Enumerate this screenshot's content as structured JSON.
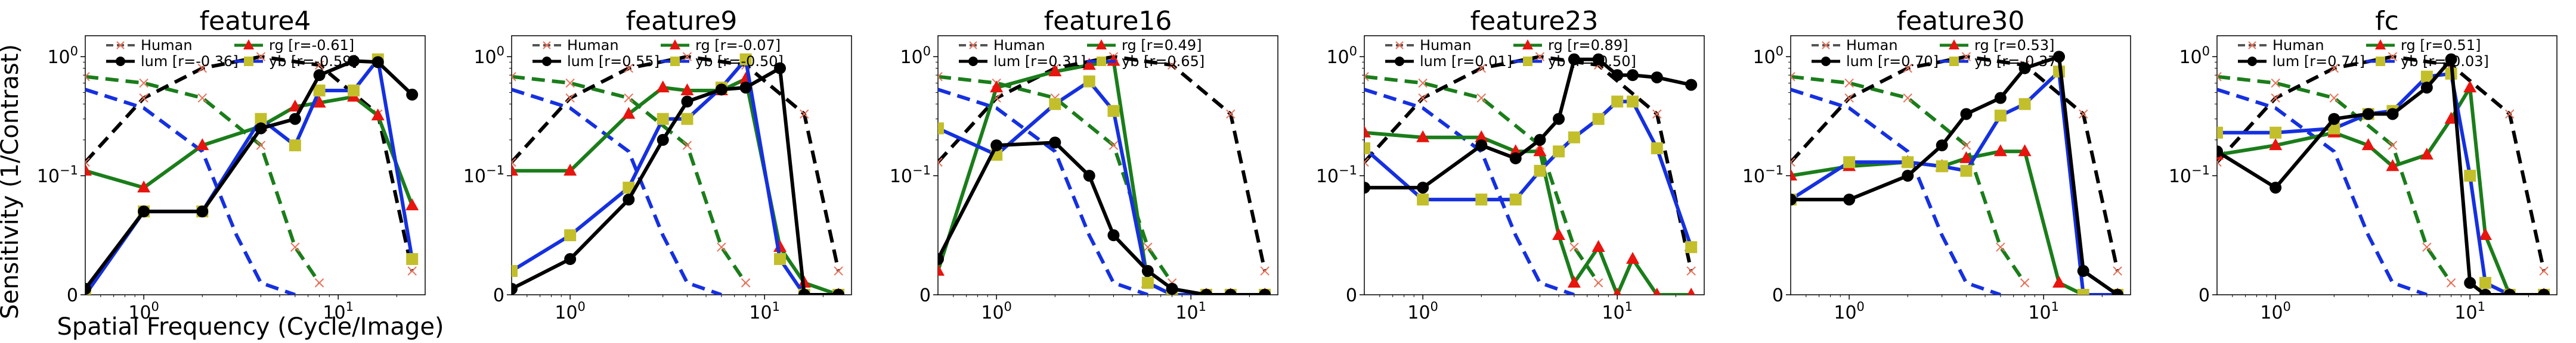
{
  "figure": {
    "ylabel": "Sensitivity (1/Contrast)",
    "xlabel": "Spatial Frequency (Cycle/Image)"
  },
  "colors": {
    "human": "#000000",
    "human_marker": "#e8715a",
    "lum": "#000000",
    "rg_line": "#1a7d1a",
    "rg_marker": "#e8140e",
    "yb_line": "#1530e0",
    "yb_marker": "#c2bf2a",
    "human_rg": "#1a7d1a",
    "human_yb": "#1530e0"
  },
  "chart_data": [
    {
      "type": "line",
      "title": "feature4",
      "x_scale": "log",
      "y_scale": "symlog",
      "xlim": [
        0.5,
        28
      ],
      "ylim": [
        0,
        1.5
      ],
      "xticks": [
        "10^0",
        "10^1"
      ],
      "yticks": [
        "0",
        "10^-1",
        "10^0"
      ],
      "legend": [
        "Human",
        "lum [r=-0.36]",
        "rg    [r=-0.61]",
        "yb    [r=-0.59]"
      ],
      "legend_position": "top",
      "human_lum": {
        "x": [
          0.5,
          1,
          2,
          4,
          8,
          16,
          24
        ],
        "y": [
          0.13,
          0.45,
          0.8,
          1.0,
          0.85,
          0.33,
          0.02
        ]
      },
      "human_rg": {
        "x": [
          0.5,
          1,
          2,
          4,
          6,
          8
        ],
        "y": [
          0.68,
          0.6,
          0.45,
          0.18,
          0.04,
          0.01
        ]
      },
      "human_yb": {
        "x": [
          0.5,
          1,
          2,
          3,
          4,
          6
        ],
        "y": [
          0.53,
          0.37,
          0.16,
          0.05,
          0.01,
          0.0
        ]
      },
      "series": [
        {
          "name": "lum",
          "x": [
            0.5,
            1,
            2,
            4,
            6,
            8,
            12,
            16,
            24
          ],
          "y": [
            0.005,
            0.07,
            0.07,
            0.25,
            0.3,
            0.7,
            0.92,
            0.9,
            0.48
          ]
        },
        {
          "name": "rg",
          "x": [
            0.5,
            1,
            2,
            4,
            6,
            8,
            12,
            16,
            24
          ],
          "y": [
            0.11,
            0.09,
            0.18,
            0.26,
            0.38,
            0.41,
            0.46,
            0.32,
            0.075
          ]
        },
        {
          "name": "yb",
          "x": [
            0.5,
            1,
            2,
            4,
            6,
            8,
            12,
            16,
            24
          ],
          "y": [
            0.0,
            0.07,
            0.07,
            0.3,
            0.18,
            0.52,
            0.52,
            0.95,
            0.03
          ]
        }
      ]
    },
    {
      "type": "line",
      "title": "feature9",
      "x_scale": "log",
      "y_scale": "symlog",
      "xlim": [
        0.5,
        28
      ],
      "ylim": [
        0,
        1.5
      ],
      "xticks": [
        "10^0",
        "10^1"
      ],
      "yticks": [
        "0",
        "10^-1",
        "10^0"
      ],
      "legend": [
        "Human",
        "lum [r=0.55]",
        "rg    [r=-0.07]",
        "yb    [r=-0.50]"
      ],
      "legend_position": "top",
      "human_lum": {
        "x": [
          0.5,
          1,
          2,
          4,
          8,
          16,
          24
        ],
        "y": [
          0.13,
          0.45,
          0.8,
          1.0,
          0.85,
          0.33,
          0.02
        ]
      },
      "human_rg": {
        "x": [
          0.5,
          1,
          2,
          4,
          6,
          8
        ],
        "y": [
          0.68,
          0.6,
          0.45,
          0.18,
          0.04,
          0.01
        ]
      },
      "human_yb": {
        "x": [
          0.5,
          1,
          2,
          3,
          4,
          6
        ],
        "y": [
          0.53,
          0.37,
          0.16,
          0.05,
          0.01,
          0.0
        ]
      },
      "series": [
        {
          "name": "lum",
          "x": [
            0.5,
            1,
            2,
            3,
            4,
            6,
            8,
            12,
            16,
            24
          ],
          "y": [
            0.005,
            0.03,
            0.08,
            0.2,
            0.42,
            0.53,
            0.55,
            0.8,
            0.0,
            0.0
          ]
        },
        {
          "name": "rg",
          "x": [
            0.5,
            1,
            2,
            3,
            4,
            6,
            8,
            12,
            16,
            24
          ],
          "y": [
            0.11,
            0.11,
            0.33,
            0.55,
            0.52,
            0.52,
            0.65,
            0.04,
            0.01,
            0.0
          ]
        },
        {
          "name": "yb",
          "x": [
            0.5,
            1,
            2,
            3,
            4,
            6,
            8,
            12,
            16,
            24
          ],
          "y": [
            0.02,
            0.05,
            0.09,
            0.3,
            0.3,
            0.55,
            0.95,
            0.03,
            0.0,
            0.0
          ]
        }
      ]
    },
    {
      "type": "line",
      "title": "feature16",
      "x_scale": "log",
      "y_scale": "symlog",
      "xlim": [
        0.5,
        28
      ],
      "ylim": [
        0,
        1.5
      ],
      "xticks": [
        "10^0",
        "10^1"
      ],
      "yticks": [
        "0",
        "10^-1",
        "10^0"
      ],
      "legend": [
        "Human",
        "lum [r=0.31]",
        "rg    [r=0.49]",
        "yb    [r=0.65]"
      ],
      "legend_position": "top",
      "human_lum": {
        "x": [
          0.5,
          1,
          2,
          4,
          8,
          16,
          24
        ],
        "y": [
          0.13,
          0.45,
          0.8,
          1.0,
          0.85,
          0.33,
          0.02
        ]
      },
      "human_rg": {
        "x": [
          0.5,
          1,
          2,
          4,
          6,
          8
        ],
        "y": [
          0.68,
          0.6,
          0.45,
          0.18,
          0.04,
          0.01
        ]
      },
      "human_yb": {
        "x": [
          0.5,
          1,
          2,
          3,
          4,
          6
        ],
        "y": [
          0.53,
          0.37,
          0.16,
          0.05,
          0.01,
          0.0
        ]
      },
      "series": [
        {
          "name": "lum",
          "x": [
            0.5,
            1,
            2,
            3,
            4,
            6,
            8,
            12,
            16,
            24
          ],
          "y": [
            0.03,
            0.18,
            0.19,
            0.1,
            0.05,
            0.02,
            0.005,
            0.0,
            0.0,
            0.0
          ]
        },
        {
          "name": "rg",
          "x": [
            0.5,
            1,
            2,
            3,
            4,
            6,
            8,
            12,
            16,
            24
          ],
          "y": [
            0.02,
            0.55,
            0.75,
            0.85,
            0.92,
            0.01,
            0.0,
            0.0,
            0.0,
            0.0
          ]
        },
        {
          "name": "yb",
          "x": [
            0.5,
            1,
            2,
            3,
            4,
            6,
            8,
            12,
            16,
            24
          ],
          "y": [
            0.25,
            0.15,
            0.4,
            0.62,
            0.35,
            0.01,
            0.0,
            0.0,
            0.0,
            0.0
          ]
        }
      ]
    },
    {
      "type": "line",
      "title": "feature23",
      "x_scale": "log",
      "y_scale": "symlog",
      "xlim": [
        0.5,
        28
      ],
      "ylim": [
        0,
        1.5
      ],
      "xticks": [
        "10^0",
        "10^1"
      ],
      "yticks": [
        "0",
        "10^-1",
        "10^0"
      ],
      "legend": [
        "Human",
        "lum [r=0.01]",
        "rg    [r=0.89]",
        "yb    [r=-0.50]"
      ],
      "legend_position": "top",
      "human_lum": {
        "x": [
          0.5,
          1,
          2,
          4,
          8,
          16,
          24
        ],
        "y": [
          0.13,
          0.45,
          0.8,
          1.0,
          0.85,
          0.33,
          0.02
        ]
      },
      "human_rg": {
        "x": [
          0.5,
          1,
          2,
          4,
          6,
          8
        ],
        "y": [
          0.68,
          0.6,
          0.45,
          0.18,
          0.04,
          0.01
        ]
      },
      "human_yb": {
        "x": [
          0.5,
          1,
          2,
          3,
          4,
          6
        ],
        "y": [
          0.53,
          0.37,
          0.16,
          0.05,
          0.01,
          0.0
        ]
      },
      "series": [
        {
          "name": "lum",
          "x": [
            0.5,
            1,
            2,
            3,
            4,
            5,
            6,
            8,
            10,
            12,
            16,
            24
          ],
          "y": [
            0.09,
            0.09,
            0.18,
            0.14,
            0.2,
            0.3,
            0.95,
            0.95,
            0.7,
            0.7,
            0.67,
            0.58
          ]
        },
        {
          "name": "rg",
          "x": [
            0.5,
            1,
            2,
            3,
            4,
            5,
            6,
            8,
            10,
            12,
            16,
            24
          ],
          "y": [
            0.23,
            0.21,
            0.21,
            0.16,
            0.16,
            0.05,
            0.01,
            0.04,
            0.0,
            0.03,
            0.0,
            0.0
          ]
        },
        {
          "name": "yb",
          "x": [
            0.5,
            1,
            2,
            3,
            4,
            5,
            6,
            8,
            10,
            12,
            16,
            24
          ],
          "y": [
            0.17,
            0.08,
            0.08,
            0.08,
            0.11,
            0.16,
            0.21,
            0.3,
            0.42,
            0.42,
            0.17,
            0.04
          ]
        }
      ]
    },
    {
      "type": "line",
      "title": "feature30",
      "x_scale": "log",
      "y_scale": "symlog",
      "xlim": [
        0.5,
        28
      ],
      "ylim": [
        0,
        1.5
      ],
      "xticks": [
        "10^0",
        "10^1"
      ],
      "yticks": [
        "0",
        "10^-1",
        "10^0"
      ],
      "legend": [
        "Human",
        "lum [r=0.70]",
        "rg    [r=0.53]",
        "yb    [r=-0.37]"
      ],
      "legend_position": "top",
      "human_lum": {
        "x": [
          0.5,
          1,
          2,
          4,
          8,
          16,
          24
        ],
        "y": [
          0.13,
          0.45,
          0.8,
          1.0,
          0.85,
          0.33,
          0.02
        ]
      },
      "human_rg": {
        "x": [
          0.5,
          1,
          2,
          4,
          6,
          8
        ],
        "y": [
          0.68,
          0.6,
          0.45,
          0.18,
          0.04,
          0.01
        ]
      },
      "human_yb": {
        "x": [
          0.5,
          1,
          2,
          3,
          4,
          6
        ],
        "y": [
          0.53,
          0.37,
          0.16,
          0.05,
          0.01,
          0.0
        ]
      },
      "series": [
        {
          "name": "lum",
          "x": [
            0.5,
            1,
            2,
            3,
            4,
            6,
            8,
            12,
            16,
            24
          ],
          "y": [
            0.08,
            0.08,
            0.1,
            0.18,
            0.33,
            0.45,
            0.8,
            1.0,
            0.02,
            0.0
          ]
        },
        {
          "name": "rg",
          "x": [
            0.5,
            1,
            2,
            3,
            4,
            6,
            8,
            12,
            16,
            24
          ],
          "y": [
            0.1,
            0.12,
            0.13,
            0.12,
            0.14,
            0.16,
            0.16,
            0.01,
            0.0,
            0.0
          ]
        },
        {
          "name": "yb",
          "x": [
            0.5,
            1,
            2,
            3,
            4,
            6,
            8,
            12,
            16,
            24
          ],
          "y": [
            0.08,
            0.13,
            0.13,
            0.12,
            0.11,
            0.32,
            0.4,
            0.75,
            0.0,
            0.0
          ]
        }
      ]
    },
    {
      "type": "line",
      "title": "fc",
      "x_scale": "log",
      "y_scale": "symlog",
      "xlim": [
        0.5,
        28
      ],
      "ylim": [
        0,
        1.5
      ],
      "xticks": [
        "10^0",
        "10^1"
      ],
      "yticks": [
        "0",
        "10^-1",
        "10^0"
      ],
      "legend": [
        "Human",
        "lum [r=0.74]",
        "rg    [r=0.51]",
        "yb    [r=-0.03]"
      ],
      "legend_position": "top",
      "human_lum": {
        "x": [
          0.5,
          1,
          2,
          4,
          8,
          16,
          24
        ],
        "y": [
          0.13,
          0.45,
          0.8,
          1.0,
          0.85,
          0.33,
          0.02
        ]
      },
      "human_rg": {
        "x": [
          0.5,
          1,
          2,
          4,
          6,
          8
        ],
        "y": [
          0.68,
          0.6,
          0.45,
          0.18,
          0.04,
          0.01
        ]
      },
      "human_yb": {
        "x": [
          0.5,
          1,
          2,
          3,
          4,
          6
        ],
        "y": [
          0.53,
          0.37,
          0.16,
          0.05,
          0.01,
          0.0
        ]
      },
      "series": [
        {
          "name": "lum",
          "x": [
            0.5,
            1,
            2,
            3,
            4,
            6,
            8,
            10,
            12,
            16,
            24
          ],
          "y": [
            0.16,
            0.09,
            0.3,
            0.33,
            0.33,
            0.55,
            0.95,
            0.01,
            0.0,
            0.0,
            0.0
          ]
        },
        {
          "name": "rg",
          "x": [
            0.5,
            1,
            2,
            3,
            4,
            6,
            8,
            10,
            12,
            16,
            24
          ],
          "y": [
            0.15,
            0.18,
            0.23,
            0.18,
            0.12,
            0.15,
            0.3,
            0.55,
            0.05,
            0.0,
            0.0
          ]
        },
        {
          "name": "yb",
          "x": [
            0.5,
            1,
            2,
            3,
            4,
            6,
            8,
            10,
            12,
            16,
            24
          ],
          "y": [
            0.23,
            0.23,
            0.25,
            0.33,
            0.35,
            0.68,
            0.72,
            0.1,
            0.01,
            0.0,
            0.0
          ]
        }
      ]
    }
  ]
}
